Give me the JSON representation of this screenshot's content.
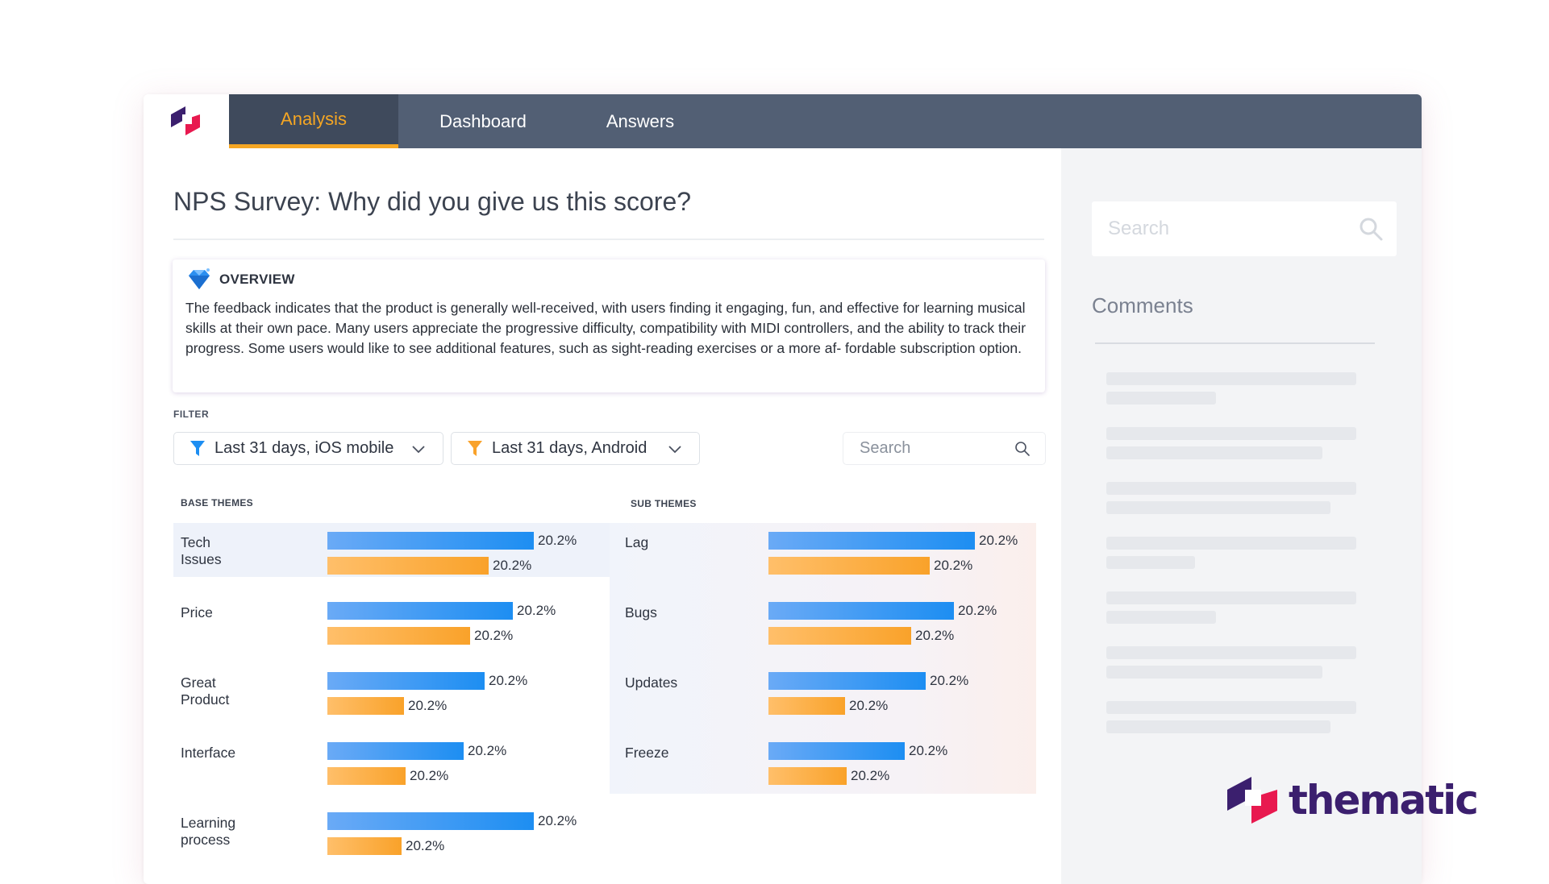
{
  "nav": {
    "tabs": [
      {
        "label": "Analysis",
        "active": true
      },
      {
        "label": "Dashboard",
        "active": false
      },
      {
        "label": "Answers",
        "active": false
      }
    ]
  },
  "page": {
    "title": "NPS Survey: Why did you give us this score?"
  },
  "overview": {
    "label": "OVERVIEW",
    "text": "The feedback indicates that the product is generally well-received, with users finding it engaging, fun, and effective for learning musical skills at their own pace. Many users appreciate the progressive difficulty, compatibility with MIDI controllers, and the ability to track their progress. Some users would like to see additional features, such as sight-reading exercises or a more af- fordable subscription option."
  },
  "filter": {
    "label": "FILTER",
    "dropdown_1": "Last 31 days, iOS mobile",
    "dropdown_2": "Last 31 days, Android",
    "search_placeholder": "Search"
  },
  "base_themes": {
    "label": "BASE THEMES",
    "rows": [
      {
        "name": "Tech Issues",
        "blue_label": "20.2%",
        "orange_label": "20.2%",
        "blue_rel": 1.0,
        "orange_rel": 0.78,
        "highlighted": true
      },
      {
        "name": "Price",
        "blue_label": "20.2%",
        "orange_label": "20.2%",
        "blue_rel": 0.9,
        "orange_rel": 0.69
      },
      {
        "name": "Great Product",
        "blue_label": "20.2%",
        "orange_label": "20.2%",
        "blue_rel": 0.76,
        "orange_rel": 0.37
      },
      {
        "name": "Interface",
        "blue_label": "20.2%",
        "orange_label": "20.2%",
        "blue_rel": 0.66,
        "orange_rel": 0.38
      },
      {
        "name": "Learning process",
        "blue_label": "20.2%",
        "orange_label": "20.2%",
        "blue_rel": 1.0,
        "orange_rel": 0.36
      }
    ]
  },
  "sub_themes": {
    "label": "SUB THEMES",
    "rows": [
      {
        "name": "Lag",
        "blue_label": "20.2%",
        "orange_label": "20.2%",
        "blue_rel": 1.0,
        "orange_rel": 0.78
      },
      {
        "name": "Bugs",
        "blue_label": "20.2%",
        "orange_label": "20.2%",
        "blue_rel": 0.9,
        "orange_rel": 0.69
      },
      {
        "name": "Updates",
        "blue_label": "20.2%",
        "orange_label": "20.2%",
        "blue_rel": 0.76,
        "orange_rel": 0.37
      },
      {
        "name": "Freeze",
        "blue_label": "20.2%",
        "orange_label": "20.2%",
        "blue_rel": 0.66,
        "orange_rel": 0.38
      }
    ]
  },
  "sidebar": {
    "search_placeholder": "Search",
    "comments_title": "Comments"
  },
  "brand": {
    "name": "thematic"
  },
  "colors": {
    "nav_bg": "#525f74",
    "nav_active": "#f5a623",
    "bar_blue": "#1d8ef2",
    "bar_orange": "#f9a22a",
    "brand_purple": "#3b1f6e",
    "brand_pink": "#e8194f"
  },
  "icons": {
    "logo": "thematic-logo-icon",
    "overview": "diamond-icon",
    "filter": "funnel-icon",
    "dropdown": "chevron-down-icon",
    "search": "search-icon"
  }
}
